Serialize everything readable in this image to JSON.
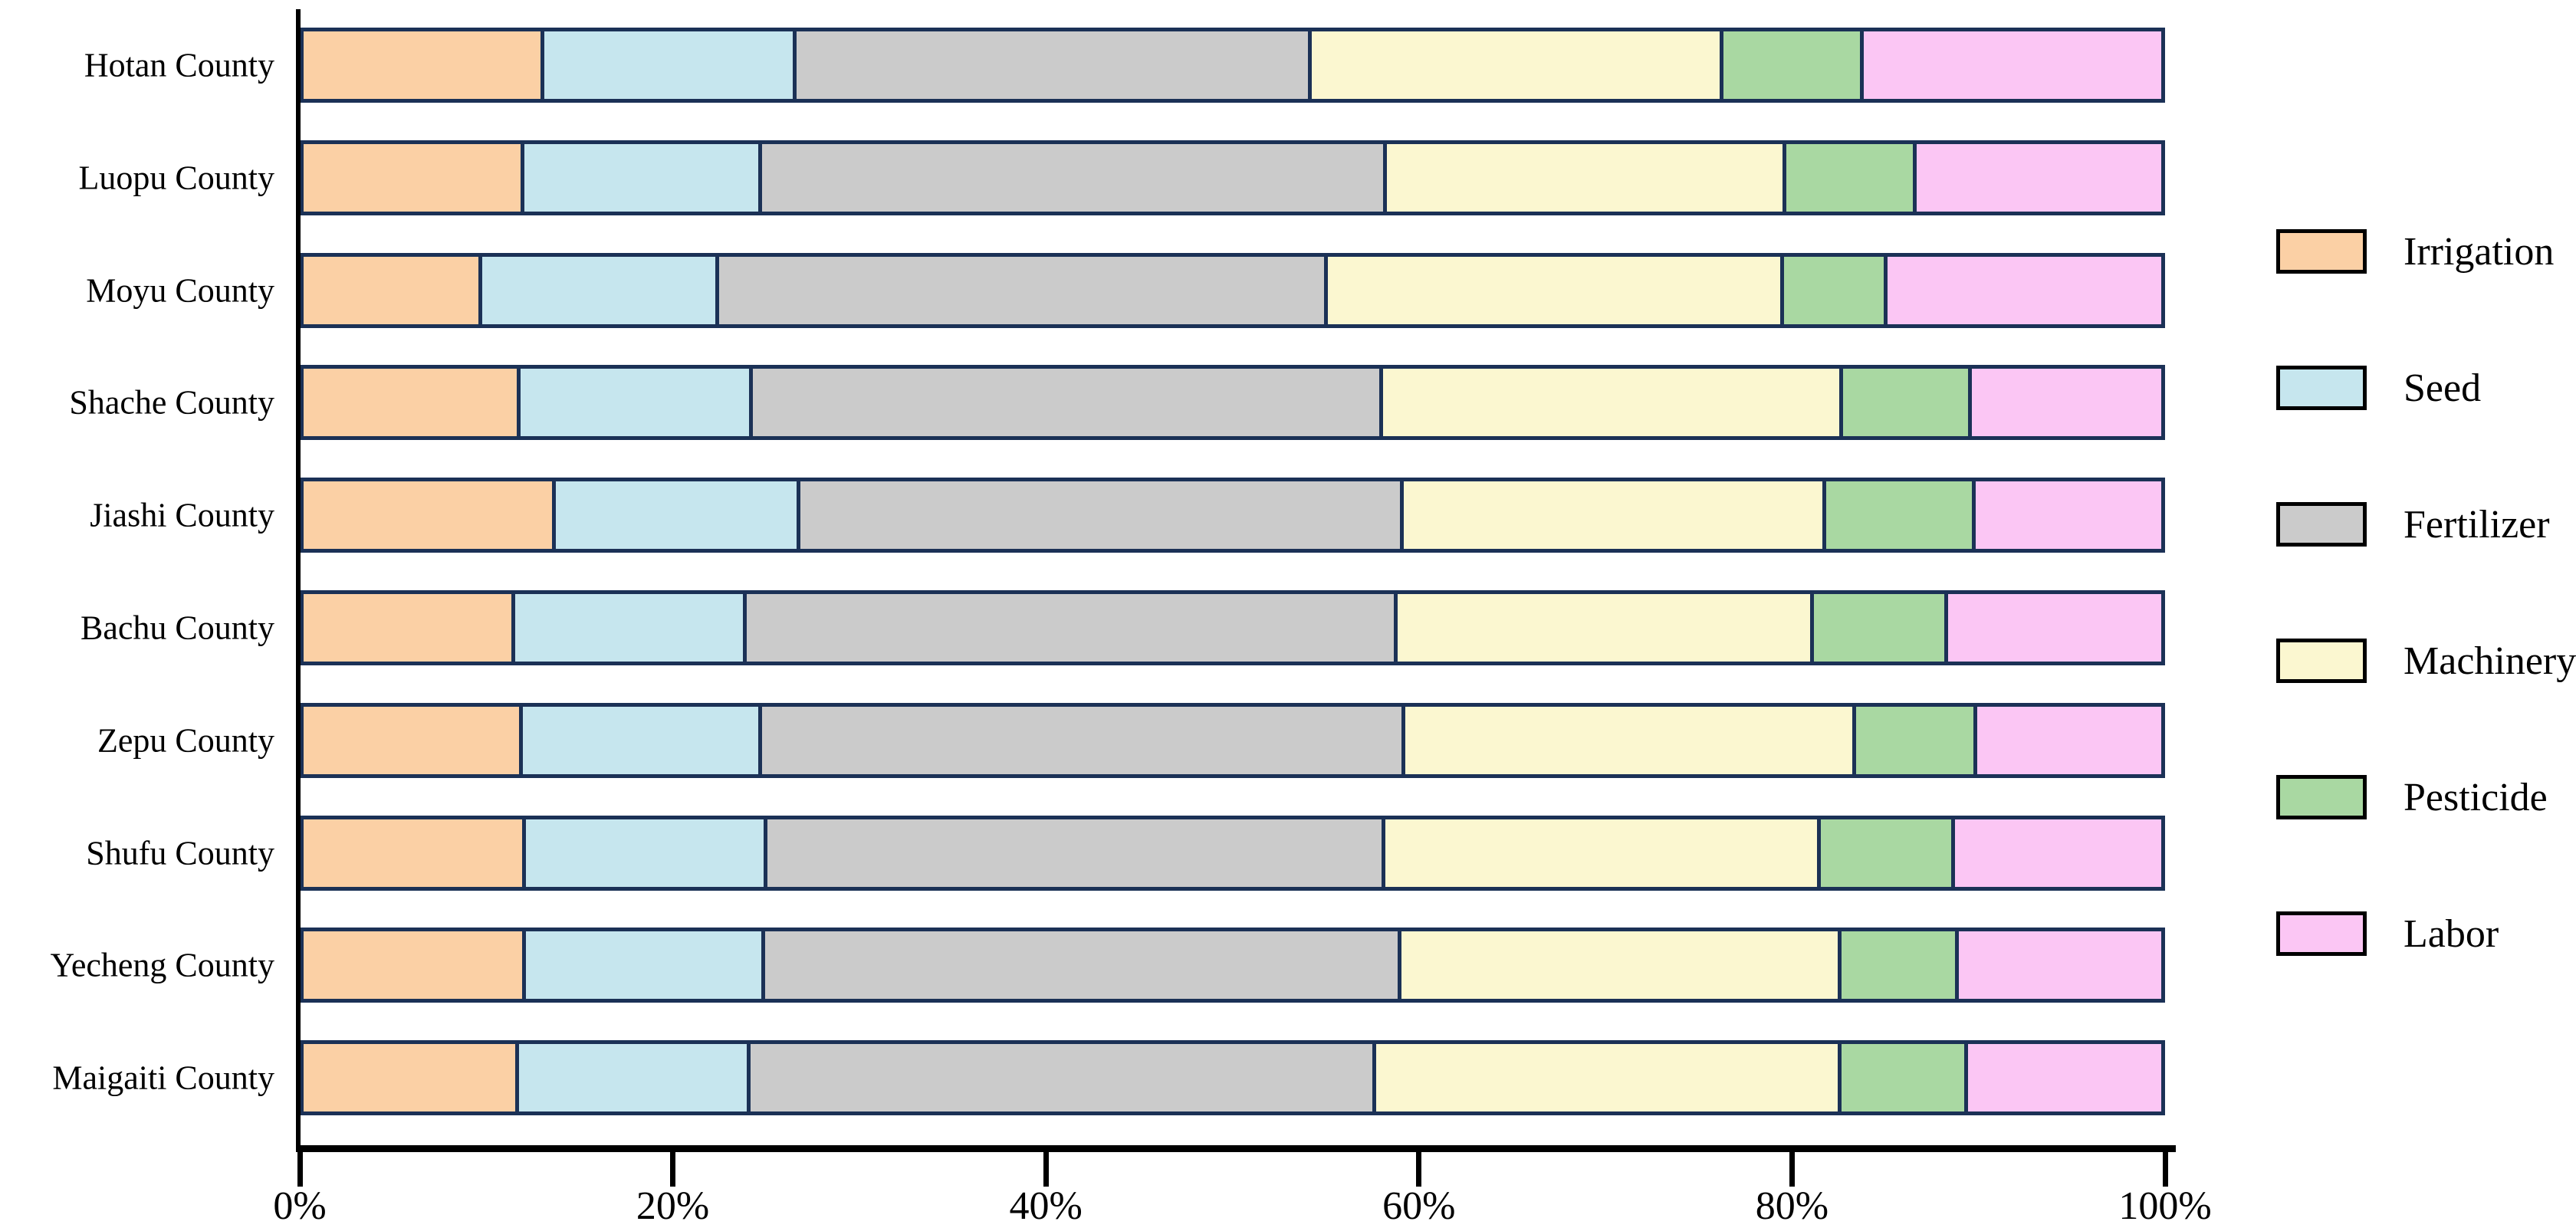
{
  "chart_data": {
    "type": "bar",
    "orientation": "horizontal",
    "stacked": true,
    "title": "",
    "xlabel": "",
    "ylabel": "",
    "categories": [
      "Hotan County",
      "Luopu County",
      "Moyu County",
      "Shache County",
      "Jiashi County",
      "Bachu County",
      "Zepu County",
      "Shufu County",
      "Yecheng County",
      "Maigaiti County"
    ],
    "series": [
      {
        "name": "Irrigation",
        "color": "#FBD0A5",
        "values": [
          12.9,
          11.8,
          9.5,
          11.6,
          13.5,
          11.3,
          11.7,
          11.9,
          11.9,
          11.5
        ]
      },
      {
        "name": "Seed",
        "color": "#C6E6EE",
        "values": [
          13.5,
          12.7,
          12.7,
          12.4,
          13.1,
          12.4,
          12.8,
          12.9,
          12.8,
          12.4
        ]
      },
      {
        "name": "Fertilizer",
        "color": "#CBCBCB",
        "values": [
          27.8,
          33.8,
          32.9,
          34.1,
          32.6,
          35.2,
          34.8,
          33.4,
          34.4,
          33.8
        ]
      },
      {
        "name": "Machinery",
        "color": "#FBF7D0",
        "values": [
          22.2,
          21.5,
          24.6,
          24.8,
          22.8,
          22.4,
          24.3,
          23.5,
          23.7,
          25.1
        ]
      },
      {
        "name": "Pesticide",
        "color": "#A9D8A2",
        "values": [
          7.4,
          6.9,
          5.4,
          6.8,
          7.9,
          7.1,
          6.4,
          7.1,
          6.2,
          6.7
        ]
      },
      {
        "name": "Labor",
        "color": "#FBC6F4",
        "values": [
          16.2,
          13.3,
          14.9,
          10.3,
          10.1,
          11.6,
          10.0,
          11.2,
          11.0,
          10.5
        ]
      }
    ],
    "x_axis": {
      "range": [
        0,
        100
      ],
      "tick_labels": [
        "0%",
        "20%",
        "40%",
        "60%",
        "80%",
        "100%"
      ],
      "tick_values": [
        0,
        20,
        40,
        60,
        80,
        100
      ],
      "grid": false
    },
    "legend": {
      "position": "right",
      "entries": [
        "Irrigation",
        "Seed",
        "Fertilizer",
        "Machinery",
        "Pesticide",
        "Labor"
      ]
    },
    "styles": {
      "bar_border_color": "#1B3156",
      "legend_border_color": "#000000",
      "axis_color": "#000000",
      "background": "#ffffff"
    }
  }
}
